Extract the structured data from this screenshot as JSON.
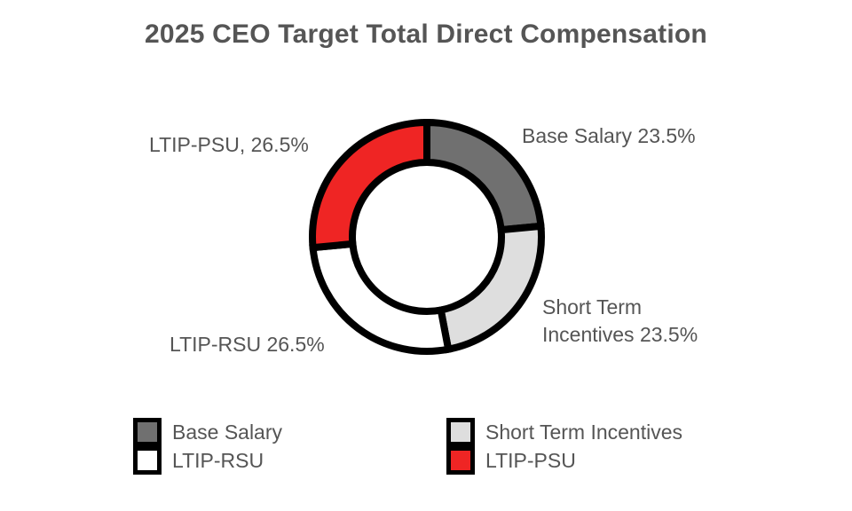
{
  "chart_data": {
    "type": "pie",
    "title": "2025 CEO Target Total Direct Compensation",
    "donut": true,
    "slices": [
      {
        "name": "Base Salary",
        "value": 23.5,
        "color": "#707070",
        "label": "Base Salary 23.5%"
      },
      {
        "name": "Short Term Incentives",
        "value": 23.5,
        "color": "#dedede",
        "label_lines": [
          "Short Term",
          "Incentives 23.5%"
        ]
      },
      {
        "name": "LTIP-RSU",
        "value": 26.5,
        "color": "#ffffff",
        "label": "LTIP-RSU 26.5%"
      },
      {
        "name": "LTIP-PSU",
        "value": 26.5,
        "color": "#ef2524",
        "label": "LTIP-PSU, 26.5%"
      }
    ],
    "legend": [
      {
        "name": "Base Salary",
        "color": "#707070"
      },
      {
        "name": "Short Term Incentives",
        "color": "#dedede"
      },
      {
        "name": "LTIP-RSU",
        "color": "#ffffff"
      },
      {
        "name": "LTIP-PSU",
        "color": "#ef2524"
      }
    ],
    "legend_position": "bottom"
  }
}
